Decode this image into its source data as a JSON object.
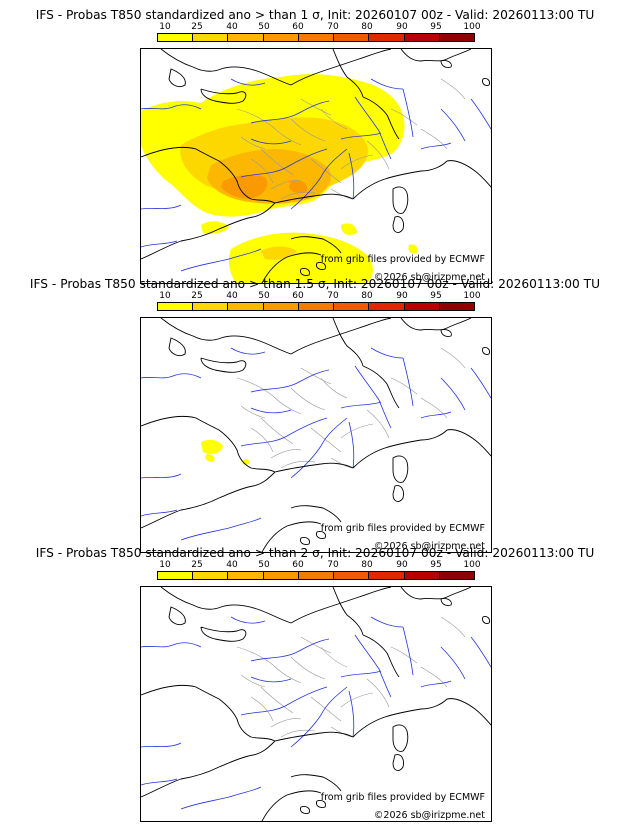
{
  "panels": [
    {
      "title": "IFS - Probas T850  standardized ano > than 1 σ, Init: 20260107 00z - Valid: 20260113:00 TU",
      "credit_source": "from grib files provided by ECMWF",
      "credit_copyright": "©2026 sb@irizpme.net",
      "probability_field": "strong"
    },
    {
      "title": "IFS - Probas T850  standardized ano > than 1.5 σ, Init: 20260107 00z - Valid: 20260113:00 TU",
      "credit_source": "from grib files provided by ECMWF",
      "credit_copyright": "©2026 sb@irizpme.net",
      "probability_field": "weak"
    },
    {
      "title": "IFS - Probas T850  standardized ano > than 2 σ, Init: 20260107 00z - Valid: 20260113:00 TU",
      "credit_source": "from grib files provided by ECMWF",
      "credit_copyright": "©2026 sb@irizpme.net",
      "probability_field": "none"
    }
  ],
  "color_scale": {
    "labels": [
      "10",
      "25",
      "40",
      "50",
      "60",
      "70",
      "80",
      "90",
      "95",
      "100"
    ],
    "colors": [
      "#ffff00",
      "#fdd800",
      "#fcb800",
      "#fb9a00",
      "#f57a00",
      "#f05a00",
      "#e02800",
      "#b80000",
      "#900000",
      "#600000"
    ]
  },
  "map_colors": {
    "coastline": "#000000",
    "rivers": "#2233dd",
    "borders": "#999999"
  }
}
